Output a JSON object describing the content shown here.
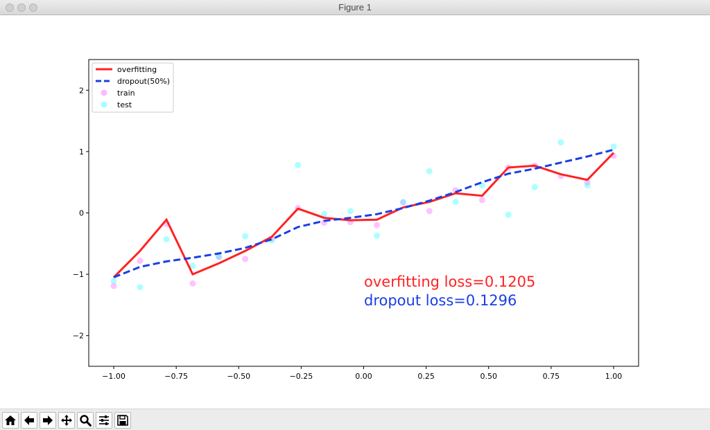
{
  "window": {
    "title": "Figure 1"
  },
  "toolbar": {
    "buttons": [
      {
        "name": "home-icon"
      },
      {
        "name": "back-icon"
      },
      {
        "name": "forward-icon"
      },
      {
        "name": "pan-icon"
      },
      {
        "name": "zoom-icon"
      },
      {
        "name": "configure-subplots-icon"
      },
      {
        "name": "save-icon"
      }
    ]
  },
  "colors": {
    "overfitting": "#ff2222",
    "dropout": "#1a3ee6",
    "train": "#ff66ff",
    "test": "#33ffff"
  },
  "chart_data": {
    "type": "line",
    "title": "",
    "xlabel": "",
    "ylabel": "",
    "xlim": [
      -1.1,
      1.1
    ],
    "ylim": [
      -2.5,
      2.5
    ],
    "x_ticks": [
      -1.0,
      -0.75,
      -0.5,
      -0.25,
      0.0,
      0.25,
      0.5,
      0.75,
      1.0
    ],
    "x_tick_labels": [
      "−1.00",
      "−0.75",
      "−0.50",
      "−0.25",
      "0.00",
      "0.25",
      "0.50",
      "0.75",
      "1.00"
    ],
    "y_ticks": [
      -2,
      -1,
      0,
      1,
      2
    ],
    "y_tick_labels": [
      "−2",
      "−1",
      "0",
      "1",
      "2"
    ],
    "legend": {
      "placement": "upper-left",
      "entries": [
        "overfitting",
        "dropout(50%)",
        "train",
        "test"
      ]
    },
    "annotations": [
      {
        "text": "overfitting loss=0.1205",
        "color": "#ff2222"
      },
      {
        "text": "dropout loss=0.1296",
        "color": "#1a3ee6"
      }
    ],
    "x": [
      -1.0,
      -0.895,
      -0.789,
      -0.684,
      -0.579,
      -0.474,
      -0.368,
      -0.263,
      -0.158,
      -0.053,
      0.053,
      0.158,
      0.263,
      0.368,
      0.474,
      0.579,
      0.684,
      0.789,
      0.895,
      1.0
    ],
    "series": [
      {
        "name": "overfitting",
        "style": "solid",
        "color": "#ff2222",
        "values": [
          -1.05,
          -0.62,
          -0.11,
          -1.0,
          -0.82,
          -0.62,
          -0.39,
          0.07,
          -0.08,
          -0.12,
          -0.11,
          0.09,
          0.18,
          0.32,
          0.28,
          0.74,
          0.77,
          0.63,
          0.54,
          0.98
        ]
      },
      {
        "name": "dropout(50%)",
        "style": "dashed",
        "color": "#1a3ee6",
        "values": [
          -1.05,
          -0.88,
          -0.79,
          -0.73,
          -0.66,
          -0.57,
          -0.43,
          -0.23,
          -0.13,
          -0.08,
          -0.02,
          0.08,
          0.2,
          0.34,
          0.5,
          0.64,
          0.72,
          0.82,
          0.92,
          1.03
        ]
      },
      {
        "name": "train",
        "type": "scatter",
        "color": "#ff66ff",
        "x": [
          -1.0,
          -0.895,
          -0.789,
          -0.684,
          -0.579,
          -0.474,
          -0.368,
          -0.263,
          -0.158,
          -0.053,
          0.053,
          0.158,
          0.263,
          0.368,
          0.474,
          0.579,
          0.684,
          0.789,
          0.895,
          1.0
        ],
        "y": [
          -1.19,
          -0.78,
          -0.18,
          -1.15,
          -0.72,
          -0.75,
          -0.42,
          0.08,
          -0.16,
          -0.15,
          -0.2,
          0.17,
          0.03,
          0.37,
          0.21,
          0.74,
          0.77,
          0.6,
          0.5,
          0.93
        ]
      },
      {
        "name": "test",
        "type": "scatter",
        "color": "#33ffff",
        "x": [
          -1.0,
          -0.895,
          -0.789,
          -0.684,
          -0.579,
          -0.474,
          -0.368,
          -0.263,
          -0.158,
          -0.053,
          0.053,
          0.158,
          0.263,
          0.368,
          0.474,
          0.579,
          0.684,
          0.789,
          0.895,
          1.0
        ],
        "y": [
          -1.11,
          -1.21,
          -0.43,
          -0.86,
          -0.71,
          -0.38,
          -0.45,
          0.78,
          -0.02,
          0.03,
          -0.37,
          0.18,
          0.68,
          0.18,
          0.45,
          -0.03,
          0.42,
          1.15,
          0.45,
          1.08
        ]
      }
    ]
  }
}
